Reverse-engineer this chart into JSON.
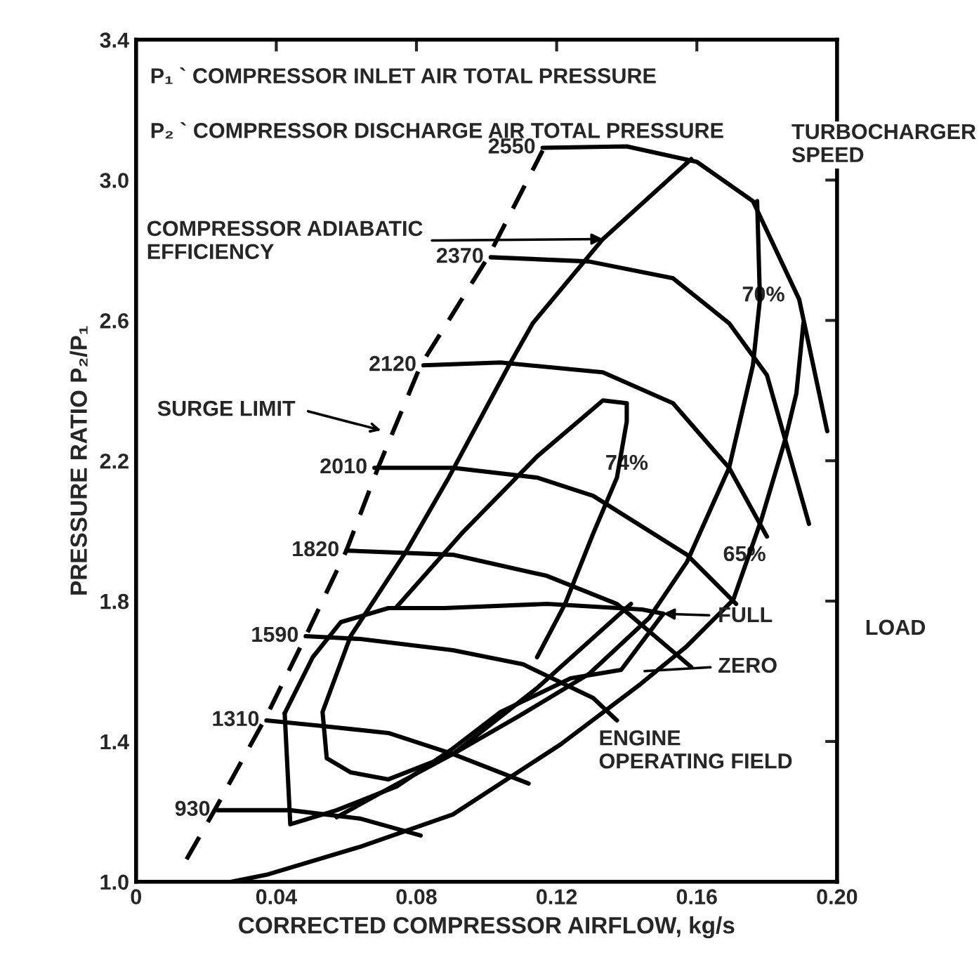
{
  "chart_data": {
    "type": "line",
    "xlabel": "CORRECTED COMPRESSOR AIRFLOW, kg/s",
    "ylabel": "PRESSURE RATIO P₂/P₁",
    "xlim": [
      0,
      0.2
    ],
    "ylim": [
      1.0,
      3.4
    ],
    "xticks": [
      0,
      0.04,
      0.08,
      0.12,
      0.16,
      {
        "value": 0.2,
        "label": "0.20"
      }
    ],
    "yticks": [
      {
        "value": 1.0,
        "label": "1.0"
      },
      1.4,
      1.8,
      2.2,
      2.6,
      {
        "value": 3.0,
        "label": "3.0"
      },
      3.4
    ],
    "grid": false,
    "legend": false,
    "marker": "none",
    "line_style": "solid",
    "series": [
      {
        "name": "2550",
        "color": "#000000",
        "x": [
          0.116,
          0.14,
          0.16,
          0.176,
          0.1892,
          0.1972
        ],
        "values": [
          3.092,
          3.096,
          3.052,
          2.94,
          2.66,
          2.284
        ]
      },
      {
        "name": "2370",
        "color": "#000000",
        "x": [
          0.1012,
          0.1292,
          0.1532,
          0.1692,
          0.18,
          0.192
        ],
        "values": [
          2.78,
          2.768,
          2.72,
          2.592,
          2.444,
          2.02
        ]
      },
      {
        "name": "2120",
        "color": "#000000",
        "x": [
          0.082,
          0.104,
          0.1332,
          0.1532,
          0.1692,
          0.18
        ],
        "values": [
          2.472,
          2.48,
          2.452,
          2.364,
          2.18,
          1.984
        ]
      },
      {
        "name": "2010",
        "color": "#000000",
        "x": [
          0.068,
          0.0904,
          0.1144,
          0.1304,
          0.1572,
          0.1712
        ],
        "values": [
          2.18,
          2.18,
          2.152,
          2.1,
          1.932,
          1.792
        ]
      },
      {
        "name": "1820",
        "color": "#000000",
        "x": [
          0.06,
          0.0904,
          0.1172,
          0.1372,
          0.1584
        ],
        "values": [
          1.944,
          1.932,
          1.872,
          1.792,
          1.612
        ]
      },
      {
        "name": "1590",
        "color": "#000000",
        "x": [
          0.0484,
          0.064,
          0.0904,
          0.1104,
          0.1304,
          0.1372
        ],
        "values": [
          1.7,
          1.692,
          1.66,
          1.62,
          1.524,
          1.46
        ]
      },
      {
        "name": "1310",
        "color": "#000000",
        "x": [
          0.0372,
          0.0532,
          0.072,
          0.0904,
          0.112
        ],
        "values": [
          1.46,
          1.444,
          1.424,
          1.364,
          1.28
        ]
      },
      {
        "name": "930",
        "color": "#000000",
        "x": [
          0.0232,
          0.044,
          0.064,
          0.0812
        ],
        "values": [
          1.204,
          1.204,
          1.18,
          1.132
        ]
      },
      {
        "color": "#000000",
        "line_style": "dashed",
        "x": [
          0.0144,
          0.0224,
          0.0372,
          0.0484,
          0.06,
          0.0692,
          0.0812,
          0.1004,
          0.116
        ],
        "values": [
          1.064,
          1.204,
          1.472,
          1.7,
          1.944,
          2.184,
          2.472,
          2.78,
          3.084
        ]
      },
      {
        "color": "#000000",
        "x": [
          0.1144,
          0.1224,
          0.1304,
          0.1372,
          0.14,
          0.14,
          0.1332,
          0.1144,
          0.0932,
          0.0744
        ],
        "values": [
          1.64,
          1.792,
          1.992,
          2.152,
          2.312,
          2.364,
          2.372,
          2.212,
          1.996,
          1.784
        ]
      },
      {
        "color": "#000000",
        "x": [
          0.1584,
          0.1332,
          0.1132,
          0.1064,
          0.0892,
          0.0772,
          0.0612,
          0.0532,
          0.0544,
          0.0612,
          0.072,
          0.0904,
          0.1144,
          0.1412
        ],
        "values": [
          3.06,
          2.832,
          2.592,
          2.472,
          2.152,
          1.944,
          1.7,
          1.484,
          1.352,
          1.312,
          1.292,
          1.364,
          1.552,
          1.792
        ]
      },
      {
        "color": "#000000",
        "x": [
          0.1772,
          0.178,
          0.176,
          0.1692,
          0.1572,
          0.1464,
          0.1292,
          0.1092,
          0.0904,
          0.0732,
          0.0572
        ],
        "values": [
          2.94,
          2.66,
          2.472,
          2.18,
          1.912,
          1.752,
          1.592,
          1.472,
          1.364,
          1.272,
          1.184
        ]
      },
      {
        "color": "#000000",
        "x": [
          0.1904,
          0.1884,
          0.1852,
          0.1784,
          0.1704,
          0.1572,
          0.144,
          0.1212,
          0.0904,
          0.064,
          0.0372,
          0.0272
        ],
        "values": [
          2.592,
          2.392,
          2.26,
          2.032,
          1.804,
          1.672,
          1.564,
          1.392,
          1.192,
          1.1,
          1.02,
          1.0
        ]
      },
      {
        "color": "#000000",
        "x": [
          0.0424,
          0.0504,
          0.0584,
          0.072,
          0.088,
          0.1172,
          0.1444,
          0.1504
        ],
        "values": [
          1.48,
          1.64,
          1.74,
          1.78,
          1.78,
          1.792,
          1.776,
          1.764
        ]
      },
      {
        "color": "#000000",
        "x": [
          0.0424,
          0.044,
          0.0572,
          0.0744,
          0.0904,
          0.104,
          0.124,
          0.1384,
          0.1504
        ],
        "values": [
          1.48,
          1.164,
          1.204,
          1.272,
          1.38,
          1.484,
          1.58,
          1.604,
          1.764
        ]
      }
    ],
    "annotations": [
      "P₁ ` COMPRESSOR INLET AIR TOTAL PRESSURE",
      "P₂ ` COMPRESSOR DISCHARGE AIR TOTAL PRESSURE",
      {
        "text": "COMPRESSOR ADIABATIC\nEFFICIENCY",
        "x": 0.1332,
        "y": 2.832
      },
      "TURBOCHARGER\nSPEED",
      "SURGE LIMIT",
      {
        "text": "74%",
        "x": 0.14,
        "y": 2.19
      },
      {
        "text": "70%",
        "x": 0.179,
        "y": 2.67
      },
      {
        "text": "65%",
        "x": 0.1736,
        "y": 1.93
      },
      {
        "text": "FULL",
        "x": 0.1504,
        "y": 1.764
      },
      "ZERO",
      "LOAD",
      "ENGINE\nOPERATING FIELD"
    ]
  }
}
